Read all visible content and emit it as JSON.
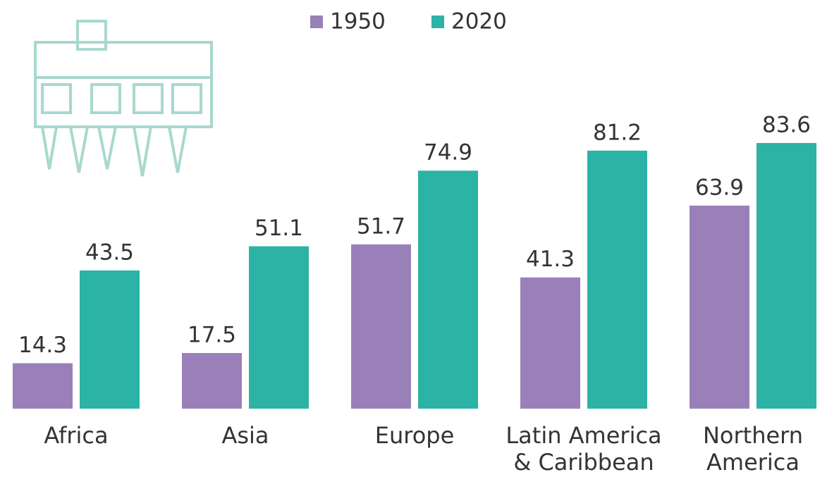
{
  "chart_data": {
    "type": "bar",
    "categories": [
      "Africa",
      "Asia",
      "Europe",
      "Latin America\n& Caribbean",
      "Northern\nAmerica"
    ],
    "series": [
      {
        "name": "1950",
        "color": "#9a80b9",
        "values": [
          14.3,
          17.5,
          51.7,
          41.3,
          63.9
        ]
      },
      {
        "name": "2020",
        "color": "#2bb3a6",
        "values": [
          43.5,
          51.1,
          74.9,
          81.2,
          83.6
        ]
      }
    ],
    "legend": "top"
  }
}
